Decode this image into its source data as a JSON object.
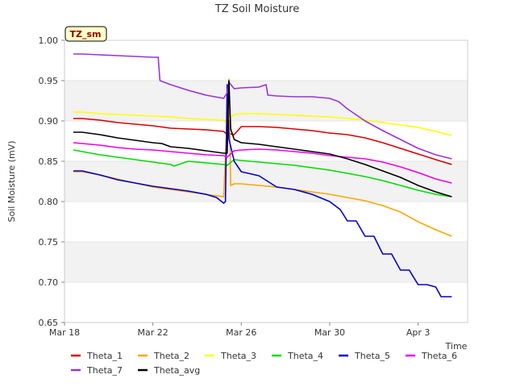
{
  "chart_data": {
    "type": "line",
    "title": "TZ Soil Moisture",
    "xlabel": "Time",
    "ylabel": "Soil Moisture (mV)",
    "badge": "TZ_sm",
    "ylim": [
      0.65,
      1.0
    ],
    "xlim": [
      0,
      22.8
    ],
    "yticks": [
      0.65,
      0.7,
      0.75,
      0.8,
      0.85,
      0.9,
      0.95,
      1.0
    ],
    "ytick_labels": [
      "0.65",
      "0.70",
      "0.75",
      "0.80",
      "0.85",
      "0.90",
      "0.95",
      "1.00"
    ],
    "xticks": [
      0,
      5,
      10,
      15,
      20
    ],
    "xtick_labels": [
      "Mar 18",
      "Mar 22",
      "Mar 26",
      "Mar 30",
      "Apr 3"
    ],
    "grid_bands": true,
    "legend_position": "bottom",
    "series": [
      {
        "name": "Theta_1",
        "color": "#dd0000",
        "x": [
          0.5,
          1,
          2,
          3,
          4,
          5,
          6,
          7,
          8,
          9,
          9.1,
          9.6,
          10,
          11,
          12,
          13,
          14,
          15,
          16,
          17,
          18,
          19,
          20,
          21,
          21.9
        ],
        "y": [
          0.903,
          0.903,
          0.901,
          0.898,
          0.896,
          0.894,
          0.891,
          0.89,
          0.889,
          0.887,
          0.885,
          0.883,
          0.893,
          0.893,
          0.892,
          0.89,
          0.888,
          0.885,
          0.883,
          0.879,
          0.873,
          0.866,
          0.859,
          0.852,
          0.846
        ]
      },
      {
        "name": "Theta_2",
        "color": "#ffa500",
        "x": [
          0.5,
          1,
          2,
          3,
          4,
          5,
          6,
          7,
          8,
          9,
          9.3,
          9.4,
          9.6,
          10,
          11,
          12,
          13,
          14,
          15,
          16,
          17,
          18,
          19,
          20,
          21,
          21.9
        ],
        "y": [
          0.837,
          0.837,
          0.833,
          0.828,
          0.823,
          0.818,
          0.815,
          0.812,
          0.809,
          0.806,
          0.952,
          0.82,
          0.822,
          0.822,
          0.82,
          0.818,
          0.815,
          0.812,
          0.809,
          0.805,
          0.801,
          0.795,
          0.787,
          0.775,
          0.765,
          0.757
        ]
      },
      {
        "name": "Theta_3",
        "color": "#ffff00",
        "x": [
          0.5,
          1,
          2,
          3,
          4,
          5,
          6,
          7,
          8,
          9,
          9.1,
          9.6,
          10,
          11,
          12,
          13,
          14,
          15,
          16,
          17,
          18,
          19,
          20,
          21,
          21.9
        ],
        "y": [
          0.911,
          0.911,
          0.909,
          0.908,
          0.907,
          0.906,
          0.905,
          0.903,
          0.902,
          0.901,
          0.899,
          0.908,
          0.909,
          0.909,
          0.908,
          0.907,
          0.906,
          0.905,
          0.903,
          0.901,
          0.898,
          0.895,
          0.892,
          0.887,
          0.882
        ]
      },
      {
        "name": "Theta_4",
        "color": "#00dd00",
        "x": [
          0.5,
          1,
          2,
          3,
          4,
          5,
          6,
          6.2,
          7,
          8,
          9,
          9.2,
          9.6,
          10,
          11,
          12,
          13,
          14,
          15,
          16,
          17,
          18,
          19,
          20,
          21,
          21.9
        ],
        "y": [
          0.864,
          0.862,
          0.858,
          0.855,
          0.852,
          0.849,
          0.846,
          0.844,
          0.85,
          0.848,
          0.846,
          0.845,
          0.852,
          0.851,
          0.849,
          0.847,
          0.845,
          0.842,
          0.839,
          0.835,
          0.831,
          0.826,
          0.82,
          0.814,
          0.809,
          0.806
        ]
      },
      {
        "name": "Theta_5",
        "color": "#0000cc",
        "x": [
          0.5,
          1,
          2,
          3,
          4,
          5,
          6,
          7,
          8,
          8.6,
          9,
          9.1,
          9.2,
          9.3,
          9.6,
          10,
          11,
          12,
          13,
          14,
          15,
          15.6,
          16,
          16.5,
          17,
          17.5,
          18,
          18.5,
          19,
          19.5,
          20,
          20.5,
          21,
          21.3,
          21.9
        ],
        "y": [
          0.838,
          0.838,
          0.833,
          0.827,
          0.823,
          0.819,
          0.816,
          0.813,
          0.809,
          0.805,
          0.798,
          0.8,
          0.945,
          0.878,
          0.85,
          0.837,
          0.832,
          0.818,
          0.815,
          0.809,
          0.8,
          0.79,
          0.776,
          0.776,
          0.757,
          0.757,
          0.735,
          0.735,
          0.715,
          0.715,
          0.697,
          0.697,
          0.694,
          0.682,
          0.682
        ]
      },
      {
        "name": "Theta_6",
        "color": "#ee00ee",
        "x": [
          0.5,
          1,
          2,
          3,
          4,
          5,
          6,
          7,
          8,
          9,
          9.2,
          9.6,
          10,
          11,
          12,
          13,
          14,
          15,
          16,
          17,
          18,
          19,
          20,
          21,
          21.9
        ],
        "y": [
          0.873,
          0.872,
          0.87,
          0.867,
          0.865,
          0.864,
          0.862,
          0.86,
          0.858,
          0.857,
          0.855,
          0.863,
          0.864,
          0.865,
          0.864,
          0.862,
          0.86,
          0.857,
          0.855,
          0.853,
          0.849,
          0.843,
          0.836,
          0.828,
          0.823
        ]
      },
      {
        "name": "Theta_7",
        "color": "#9933dd",
        "x": [
          0.5,
          1,
          2,
          3,
          4,
          5,
          5.3,
          5.4,
          6,
          7,
          8,
          9,
          9.2,
          9.3,
          9.6,
          10,
          11,
          11.4,
          11.5,
          12,
          13,
          14,
          15,
          15.5,
          16,
          17,
          18,
          19,
          20,
          21,
          21.9
        ],
        "y": [
          0.983,
          0.983,
          0.982,
          0.981,
          0.98,
          0.979,
          0.979,
          0.95,
          0.945,
          0.938,
          0.932,
          0.928,
          0.935,
          0.948,
          0.94,
          0.941,
          0.942,
          0.945,
          0.932,
          0.931,
          0.93,
          0.93,
          0.928,
          0.924,
          0.915,
          0.9,
          0.888,
          0.877,
          0.866,
          0.858,
          0.853
        ]
      },
      {
        "name": "Theta_avg",
        "color": "#000000",
        "x": [
          0.5,
          1,
          2,
          3,
          4,
          5,
          5.5,
          6,
          7,
          8,
          9,
          9.2,
          9.3,
          9.4,
          9.6,
          10,
          11,
          12,
          13,
          14,
          15,
          16,
          17,
          18,
          19,
          20,
          21,
          21.9
        ],
        "y": [
          0.886,
          0.886,
          0.883,
          0.879,
          0.876,
          0.873,
          0.872,
          0.868,
          0.866,
          0.863,
          0.86,
          0.86,
          0.95,
          0.89,
          0.877,
          0.873,
          0.871,
          0.868,
          0.865,
          0.862,
          0.859,
          0.853,
          0.846,
          0.838,
          0.83,
          0.82,
          0.812,
          0.806
        ]
      }
    ]
  }
}
